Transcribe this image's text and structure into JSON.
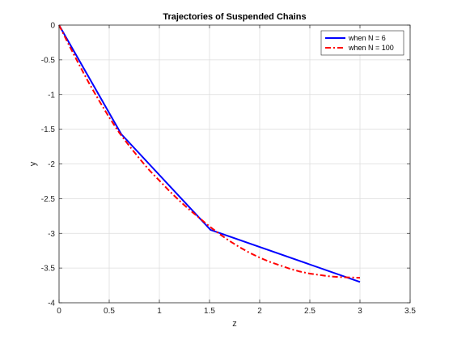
{
  "chart_data": {
    "type": "line",
    "title": "Trajectories of Suspended Chains",
    "xlabel": "z",
    "ylabel": "y",
    "xlim": [
      0,
      3.5
    ],
    "ylim": [
      -4,
      0
    ],
    "xticks": [
      0,
      0.5,
      1,
      1.5,
      2,
      2.5,
      3,
      3.5
    ],
    "xtick_labels": [
      "0",
      "0.5",
      "1",
      "1.5",
      "2",
      "2.5",
      "3",
      "3.5"
    ],
    "yticks": [
      0,
      -0.5,
      -1,
      -1.5,
      -2,
      -2.5,
      -3,
      -3.5,
      -4
    ],
    "ytick_labels": [
      "0",
      "-0.5",
      "-1",
      "-1.5",
      "-2",
      "-2.5",
      "-3",
      "-3.5",
      "-4"
    ],
    "grid": true,
    "legend_position": "top-right",
    "series": [
      {
        "name": "when N = 6",
        "color": "#0000ff",
        "line_style": "solid",
        "x": [
          0,
          0.62,
          1.51,
          3.0
        ],
        "y": [
          0,
          -1.57,
          -2.95,
          -3.7
        ]
      },
      {
        "name": "when N = 100",
        "color": "#ff0000",
        "line_style": "dashdot",
        "x": [
          0,
          0.1,
          0.2,
          0.3,
          0.4,
          0.5,
          0.6,
          0.7,
          0.8,
          0.9,
          1.0,
          1.1,
          1.2,
          1.3,
          1.4,
          1.5,
          1.6,
          1.7,
          1.8,
          1.9,
          2.0,
          2.1,
          2.2,
          2.3,
          2.4,
          2.5,
          2.6,
          2.7,
          2.8,
          2.9,
          3.0
        ],
        "y": [
          0,
          -0.29,
          -0.57,
          -0.84,
          -1.09,
          -1.33,
          -1.55,
          -1.74,
          -1.92,
          -2.09,
          -2.24,
          -2.39,
          -2.53,
          -2.66,
          -2.78,
          -2.9,
          -3.01,
          -3.11,
          -3.2,
          -3.28,
          -3.35,
          -3.41,
          -3.46,
          -3.51,
          -3.55,
          -3.58,
          -3.6,
          -3.62,
          -3.63,
          -3.635,
          -3.64
        ]
      }
    ]
  }
}
